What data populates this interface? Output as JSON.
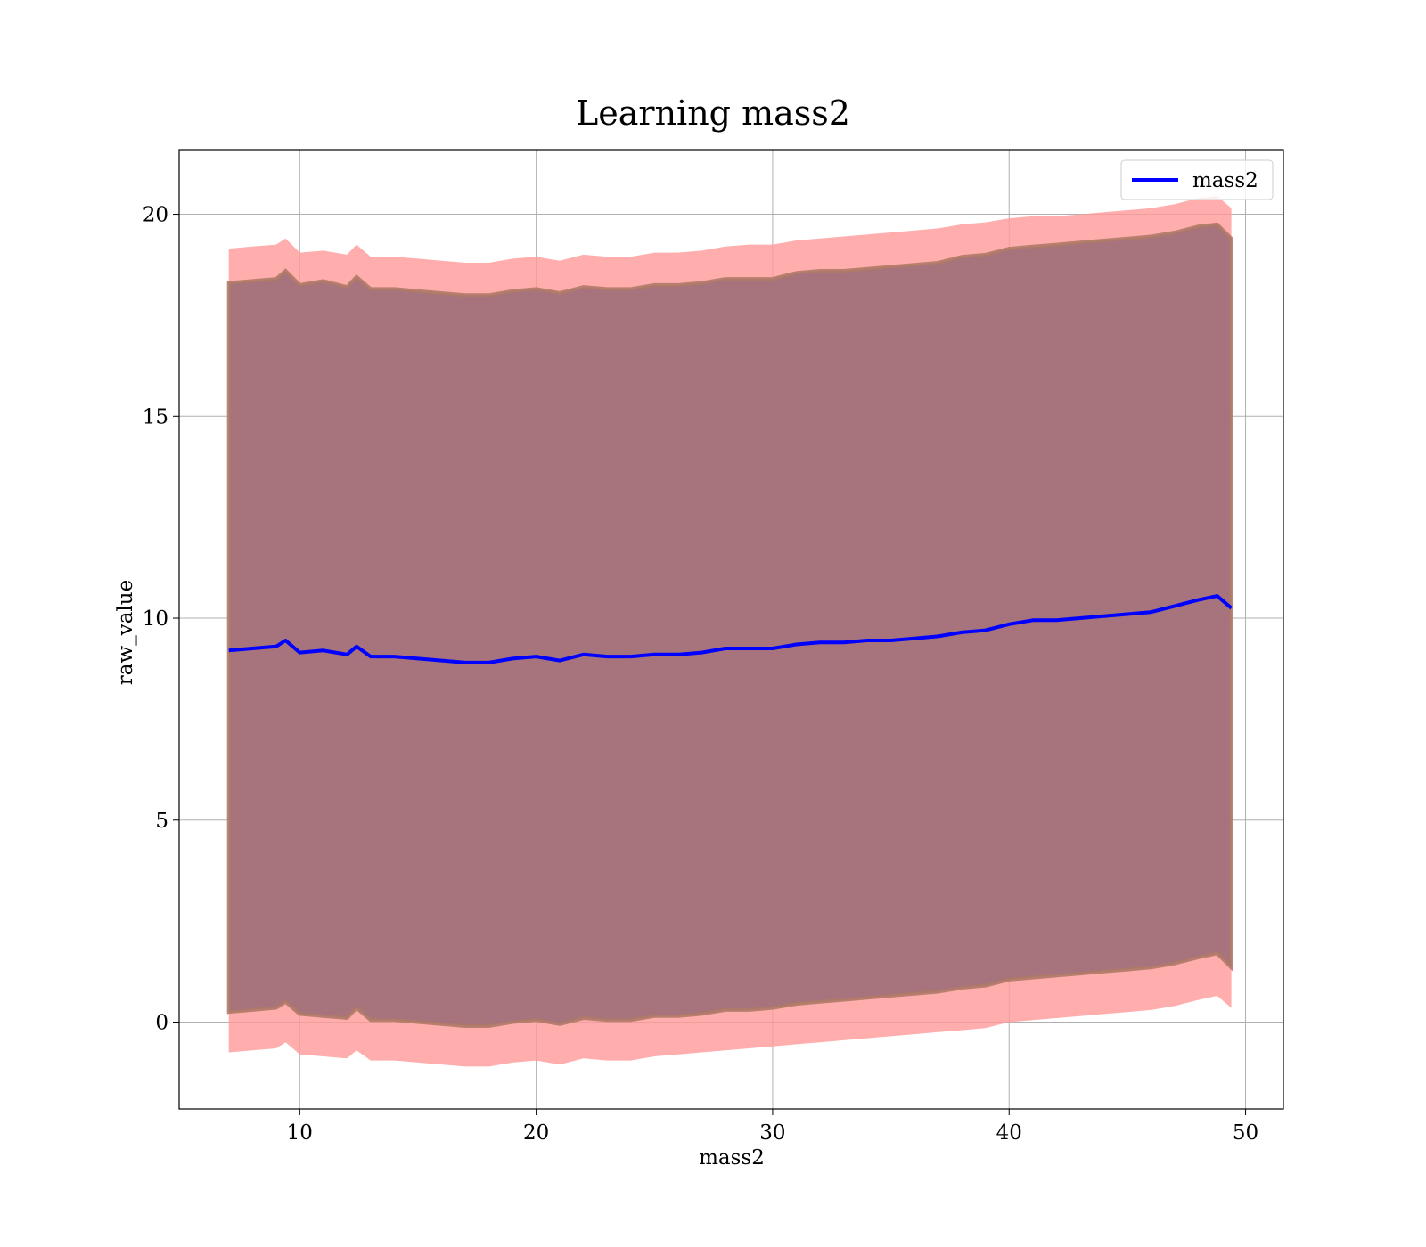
{
  "chart_data": {
    "type": "line",
    "title": "Learning mass2",
    "xlabel": "mass2",
    "ylabel": "raw_value",
    "xlim": [
      4.9,
      51.6
    ],
    "ylim": [
      -2.15,
      21.6
    ],
    "xticks": [
      10,
      20,
      30,
      40,
      50
    ],
    "yticks": [
      0,
      5,
      10,
      15,
      20
    ],
    "grid": true,
    "legend_position": "top-right",
    "colors": {
      "line": "#0000ff",
      "outer_band": "#ff9999",
      "inner_band": "#a06e78",
      "inner_band_edge": "#b07a68"
    },
    "x": [
      7.0,
      8.0,
      9.0,
      9.4,
      10.0,
      11.0,
      12.0,
      12.4,
      13.0,
      14.0,
      15.0,
      16.0,
      17.0,
      18.0,
      19.0,
      20.0,
      21.0,
      22.0,
      23.0,
      24.0,
      25.0,
      26.0,
      27.0,
      28.0,
      29.0,
      30.0,
      31.0,
      32.0,
      33.0,
      34.0,
      35.0,
      36.0,
      37.0,
      38.0,
      39.0,
      40.0,
      41.0,
      42.0,
      43.0,
      44.0,
      45.0,
      46.0,
      47.0,
      48.0,
      48.8,
      49.4
    ],
    "series": [
      {
        "name": "mass2",
        "values": [
          9.2,
          9.25,
          9.3,
          9.45,
          9.15,
          9.2,
          9.1,
          9.3,
          9.05,
          9.05,
          9.0,
          8.95,
          8.9,
          8.9,
          9.0,
          9.05,
          8.95,
          9.1,
          9.05,
          9.05,
          9.1,
          9.1,
          9.15,
          9.25,
          9.25,
          9.25,
          9.35,
          9.4,
          9.4,
          9.45,
          9.45,
          9.5,
          9.55,
          9.65,
          9.7,
          9.85,
          9.95,
          9.95,
          10.0,
          10.05,
          10.1,
          10.15,
          10.3,
          10.45,
          10.55,
          10.25
        ]
      }
    ],
    "bands": [
      {
        "lower": [
          -0.75,
          -0.7,
          -0.65,
          -0.5,
          -0.8,
          -0.85,
          -0.9,
          -0.7,
          -0.95,
          -0.95,
          -1.0,
          -1.05,
          -1.1,
          -1.1,
          -1.0,
          -0.95,
          -1.05,
          -0.9,
          -0.95,
          -0.95,
          -0.85,
          -0.8,
          -0.75,
          -0.7,
          -0.65,
          -0.6,
          -0.55,
          -0.5,
          -0.45,
          -0.4,
          -0.35,
          -0.3,
          -0.25,
          -0.2,
          -0.15,
          0.0,
          0.05,
          0.1,
          0.15,
          0.2,
          0.25,
          0.3,
          0.4,
          0.55,
          0.65,
          0.35
        ],
        "upper": [
          19.15,
          19.2,
          19.25,
          19.4,
          19.05,
          19.1,
          19.0,
          19.25,
          18.95,
          18.95,
          18.9,
          18.85,
          18.8,
          18.8,
          18.9,
          18.95,
          18.85,
          19.0,
          18.95,
          18.95,
          19.05,
          19.05,
          19.1,
          19.2,
          19.25,
          19.25,
          19.35,
          19.4,
          19.45,
          19.5,
          19.55,
          19.6,
          19.65,
          19.75,
          19.8,
          19.9,
          19.95,
          19.95,
          20.0,
          20.05,
          20.1,
          20.15,
          20.25,
          20.4,
          20.45,
          20.15
        ]
      },
      {
        "lower": [
          0.25,
          0.3,
          0.35,
          0.5,
          0.2,
          0.15,
          0.1,
          0.35,
          0.05,
          0.05,
          0.0,
          -0.05,
          -0.1,
          -0.1,
          0.0,
          0.05,
          -0.05,
          0.1,
          0.05,
          0.05,
          0.15,
          0.15,
          0.2,
          0.3,
          0.3,
          0.35,
          0.45,
          0.5,
          0.55,
          0.6,
          0.65,
          0.7,
          0.75,
          0.85,
          0.9,
          1.05,
          1.1,
          1.15,
          1.2,
          1.25,
          1.3,
          1.35,
          1.45,
          1.6,
          1.7,
          1.35
        ],
        "upper": [
          18.3,
          18.35,
          18.4,
          18.6,
          18.25,
          18.35,
          18.2,
          18.45,
          18.15,
          18.15,
          18.1,
          18.05,
          18.0,
          18.0,
          18.1,
          18.15,
          18.05,
          18.2,
          18.15,
          18.15,
          18.25,
          18.25,
          18.3,
          18.4,
          18.4,
          18.4,
          18.55,
          18.6,
          18.6,
          18.65,
          18.7,
          18.75,
          18.8,
          18.95,
          19.0,
          19.15,
          19.2,
          19.25,
          19.3,
          19.35,
          19.4,
          19.45,
          19.55,
          19.7,
          19.75,
          19.4
        ]
      }
    ]
  }
}
